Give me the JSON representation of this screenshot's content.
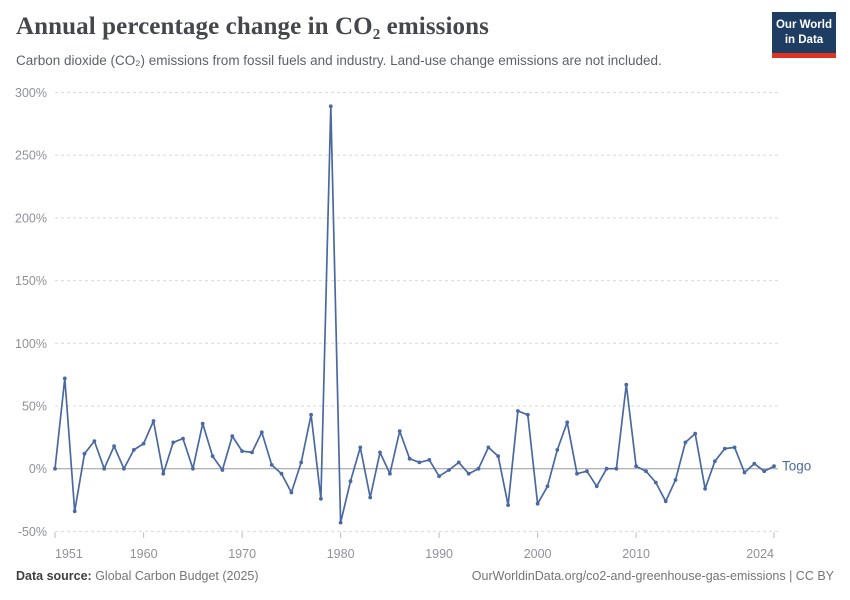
{
  "header": {
    "title": "Annual percentage change in CO₂ emissions",
    "subtitle": "Carbon dioxide (CO₂) emissions from fossil fuels and industry. Land-use change emissions are not included.",
    "logo": {
      "line1": "Our World",
      "line2": "in Data"
    }
  },
  "footer": {
    "source_label": "Data source:",
    "source_value": " Global Carbon Budget (2025)",
    "credit": "OurWorldinData.org/co2-and-greenhouse-gas-emissions | CC BY"
  },
  "colors": {
    "series_line": "#4a69a2",
    "gridline": "#d9d9d9",
    "zero_line": "#9a9a9a",
    "axis_label": "#8f9299",
    "logo_bg": "#1d3d63",
    "logo_underline": "#dd3522"
  },
  "chart_data": {
    "type": "line",
    "title": "Annual percentage change in CO₂ emissions",
    "subtitle": "Carbon dioxide (CO₂) emissions from fossil fuels and industry. Land-use change emissions are not included.",
    "xlabel": "",
    "ylabel": "",
    "ylim": [
      -50,
      300
    ],
    "yticks": [
      -50,
      0,
      50,
      100,
      150,
      200,
      250,
      300
    ],
    "ytick_suffix": "%",
    "xticks": [
      1951,
      1960,
      1970,
      1980,
      1990,
      2000,
      2010,
      2024
    ],
    "grid": "horizontal-dashed",
    "legend_position": "end-of-line-label",
    "series": [
      {
        "name": "Togo",
        "color": "#4a69a2",
        "x": [
          1951,
          1952,
          1953,
          1954,
          1955,
          1956,
          1957,
          1958,
          1959,
          1960,
          1961,
          1962,
          1963,
          1964,
          1965,
          1966,
          1967,
          1968,
          1969,
          1970,
          1971,
          1972,
          1973,
          1974,
          1975,
          1976,
          1977,
          1978,
          1979,
          1980,
          1981,
          1982,
          1983,
          1984,
          1985,
          1986,
          1987,
          1988,
          1989,
          1990,
          1991,
          1992,
          1993,
          1994,
          1995,
          1996,
          1997,
          1998,
          1999,
          2000,
          2001,
          2002,
          2003,
          2004,
          2005,
          2006,
          2007,
          2008,
          2009,
          2010,
          2011,
          2012,
          2013,
          2014,
          2015,
          2016,
          2017,
          2018,
          2019,
          2020,
          2021,
          2022,
          2023,
          2024
        ],
        "values": [
          0,
          72,
          -34,
          12,
          22,
          0,
          18,
          0,
          15,
          20,
          38,
          -4,
          21,
          24,
          0,
          36,
          10,
          -1,
          26,
          14,
          13,
          29,
          3,
          -4,
          -19,
          5,
          43,
          -24,
          289,
          -43,
          -10,
          17,
          -23,
          13,
          -4,
          30,
          8,
          5,
          7,
          -6,
          -1,
          5,
          -4,
          0,
          17,
          10,
          -29,
          46,
          43,
          -28,
          -14,
          15,
          37,
          -4,
          -2,
          -14,
          0,
          0,
          67,
          2,
          -2,
          -11,
          -26,
          -9,
          21,
          28,
          -16,
          6,
          16,
          17,
          -3,
          4,
          -2,
          2
        ]
      }
    ]
  }
}
